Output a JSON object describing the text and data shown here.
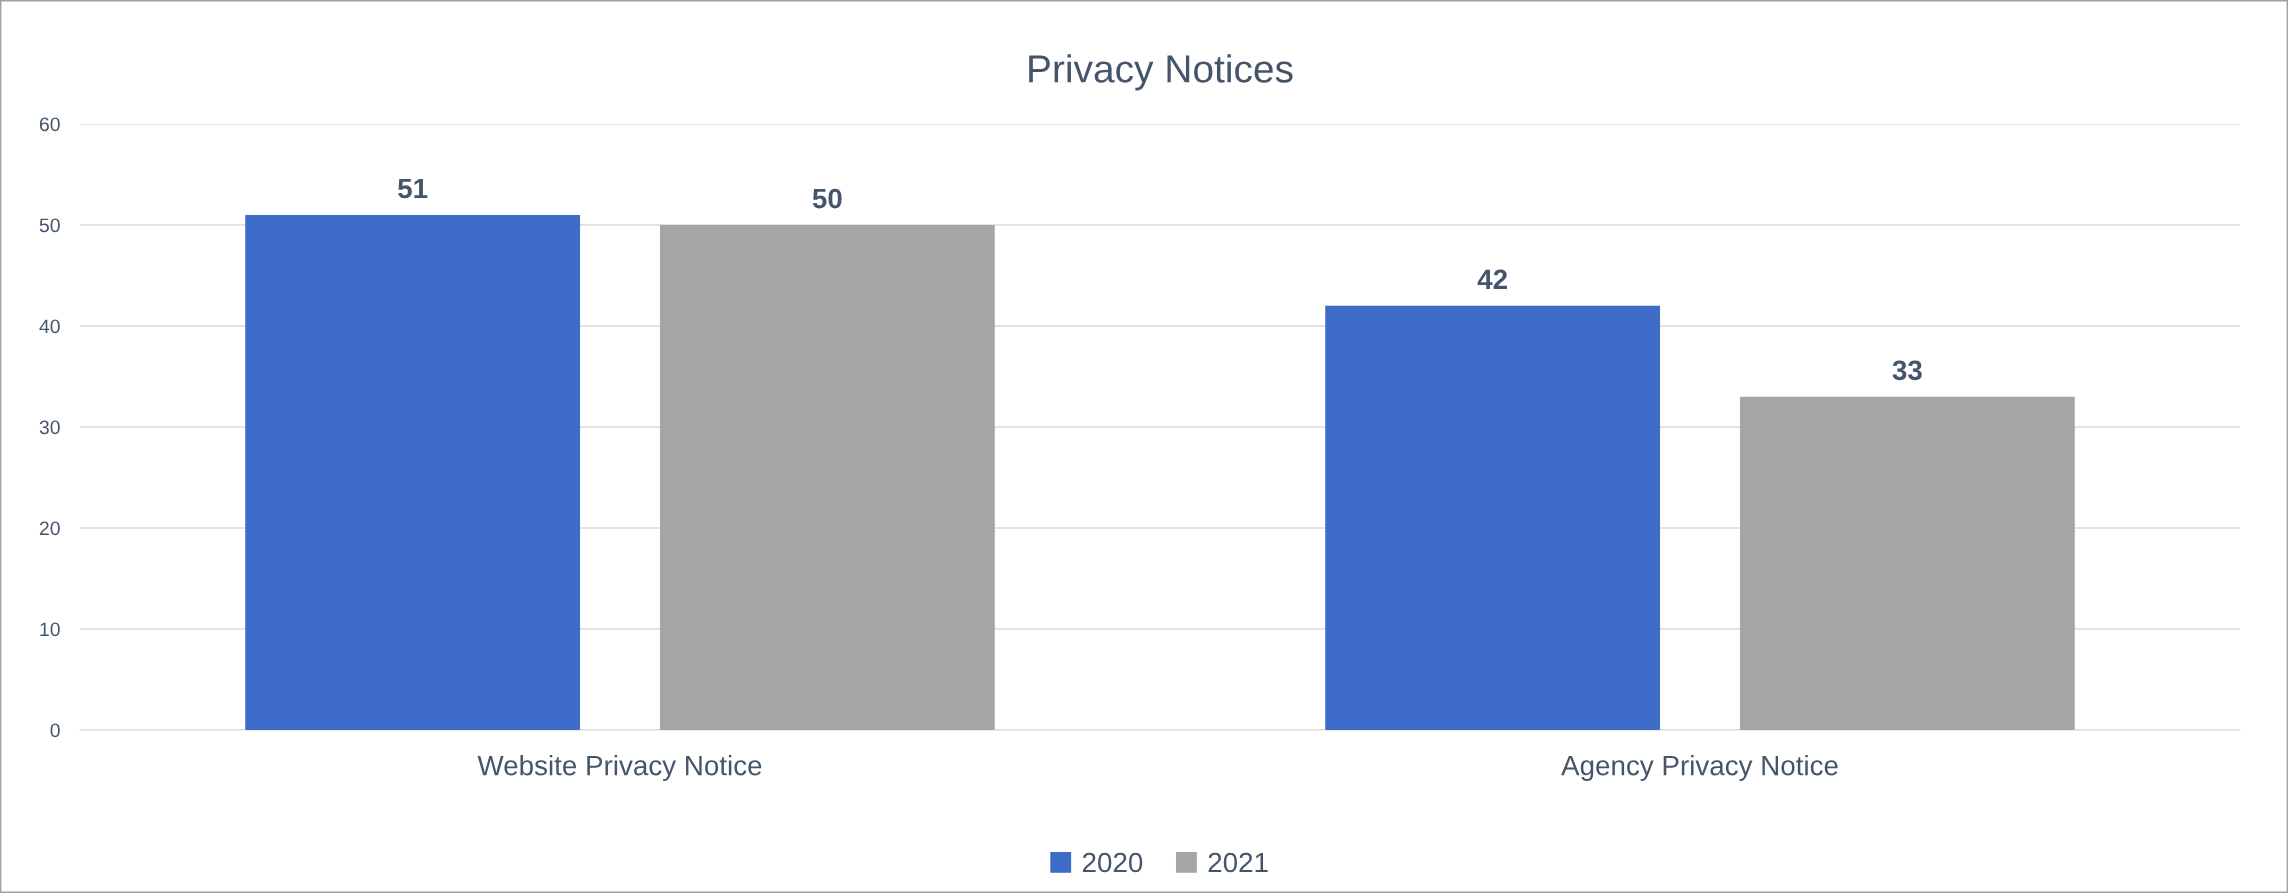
{
  "chart_data": {
    "type": "bar",
    "title": "Privacy Notices",
    "categories": [
      "Website Privacy Notice",
      "Agency Privacy Notice"
    ],
    "series": [
      {
        "name": "2020",
        "color": "#3d6cc9",
        "values": [
          51,
          42
        ]
      },
      {
        "name": "2021",
        "color": "#a5a5a5",
        "values": [
          50,
          33
        ]
      }
    ],
    "ylim": [
      0,
      60
    ],
    "yticks": [
      0,
      10,
      20,
      30,
      40,
      50,
      60
    ],
    "grid": "y",
    "legend": "bottom",
    "data_labels": true
  }
}
